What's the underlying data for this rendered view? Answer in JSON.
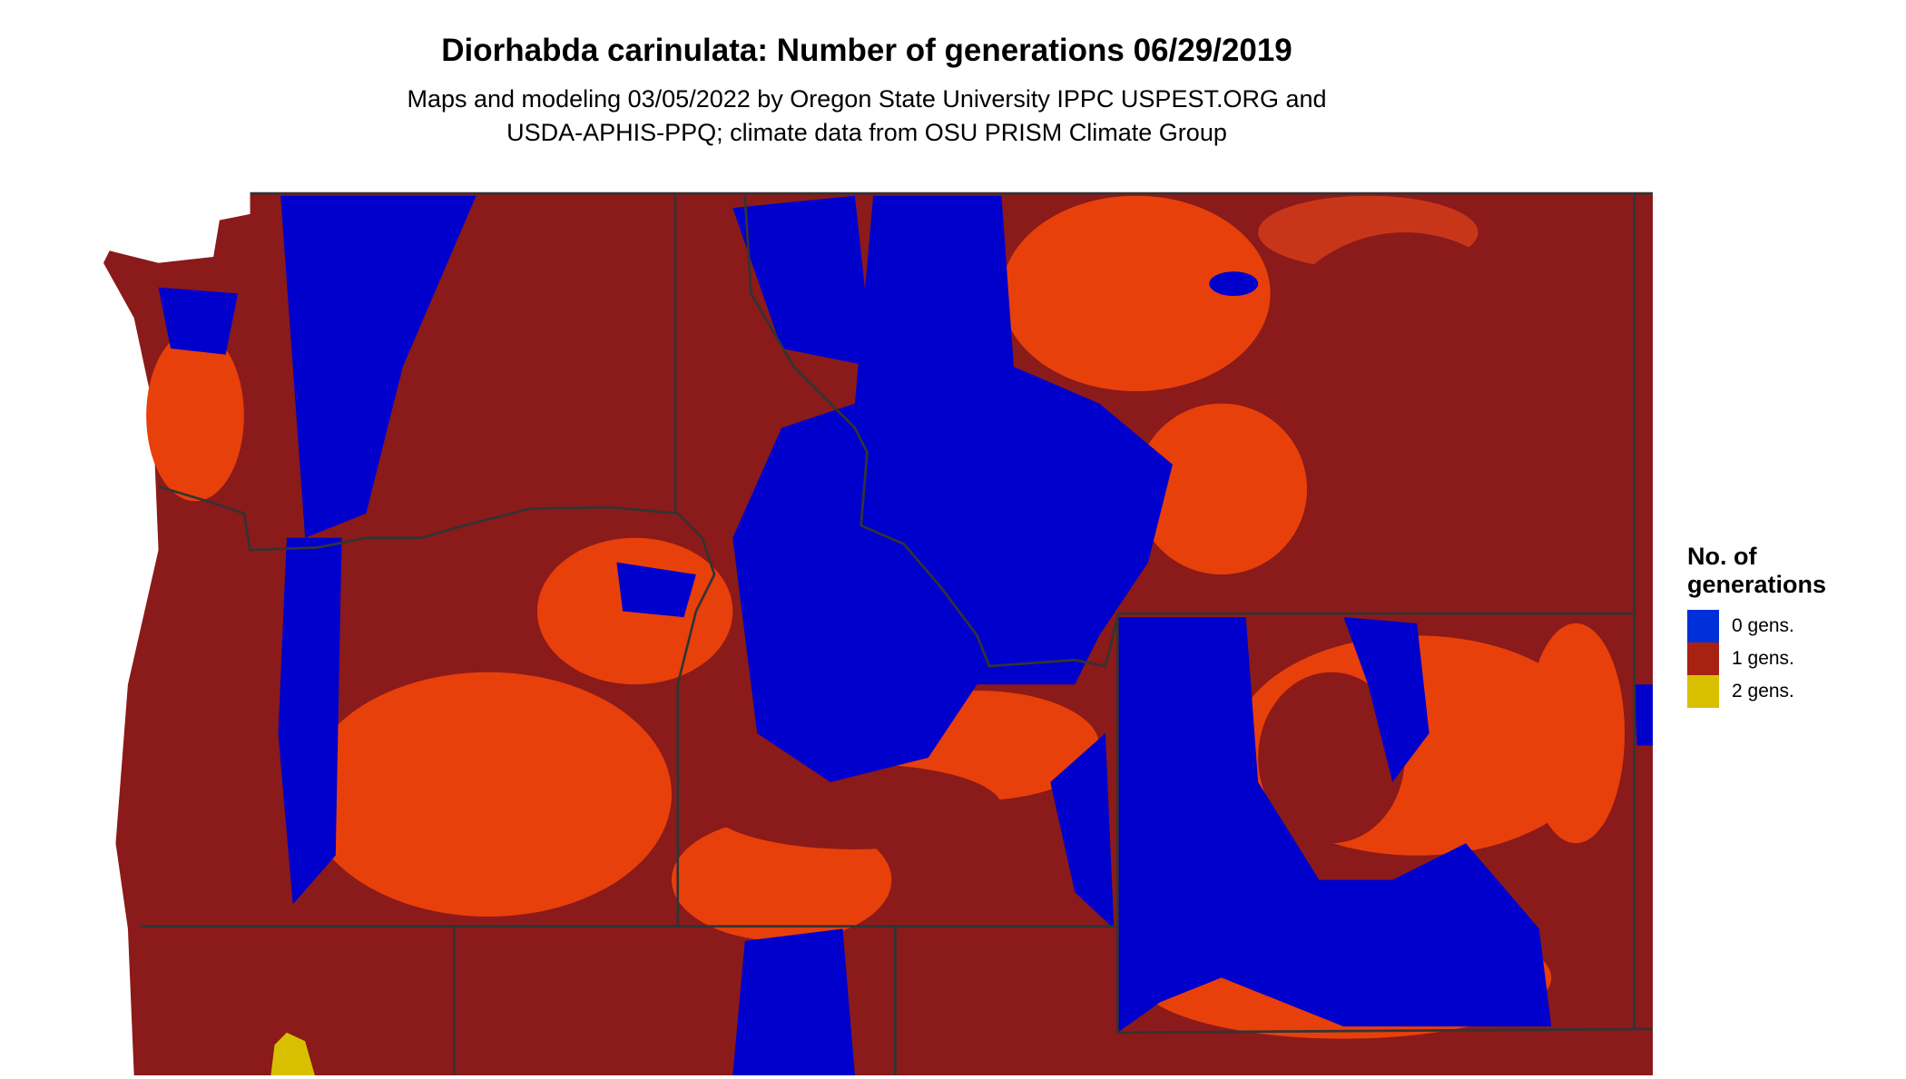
{
  "title": "Diorhabda carinulata: Number of generations 06/29/2019",
  "subtitle_lines": [
    "Maps and modeling 03/05/2022 by Oregon State University IPPC USPEST.ORG and",
    "USDA-APHIS-PPQ; climate data from OSU PRISM Climate Group"
  ],
  "legend": {
    "title_lines": [
      "No. of",
      "generations"
    ],
    "items": [
      {
        "label": "0 gens.",
        "color": "#0030d8"
      },
      {
        "label": "1 gens.",
        "color": "#a82212"
      },
      {
        "label": "2 gens.",
        "color": "#d8c000"
      }
    ]
  },
  "map_colors": {
    "zero_gens": "#0000cc",
    "one_gen_dark": "#8b1a1a",
    "one_gen_bright": "#e8400a",
    "two_gens": "#d8c000",
    "borders": "#333333"
  }
}
